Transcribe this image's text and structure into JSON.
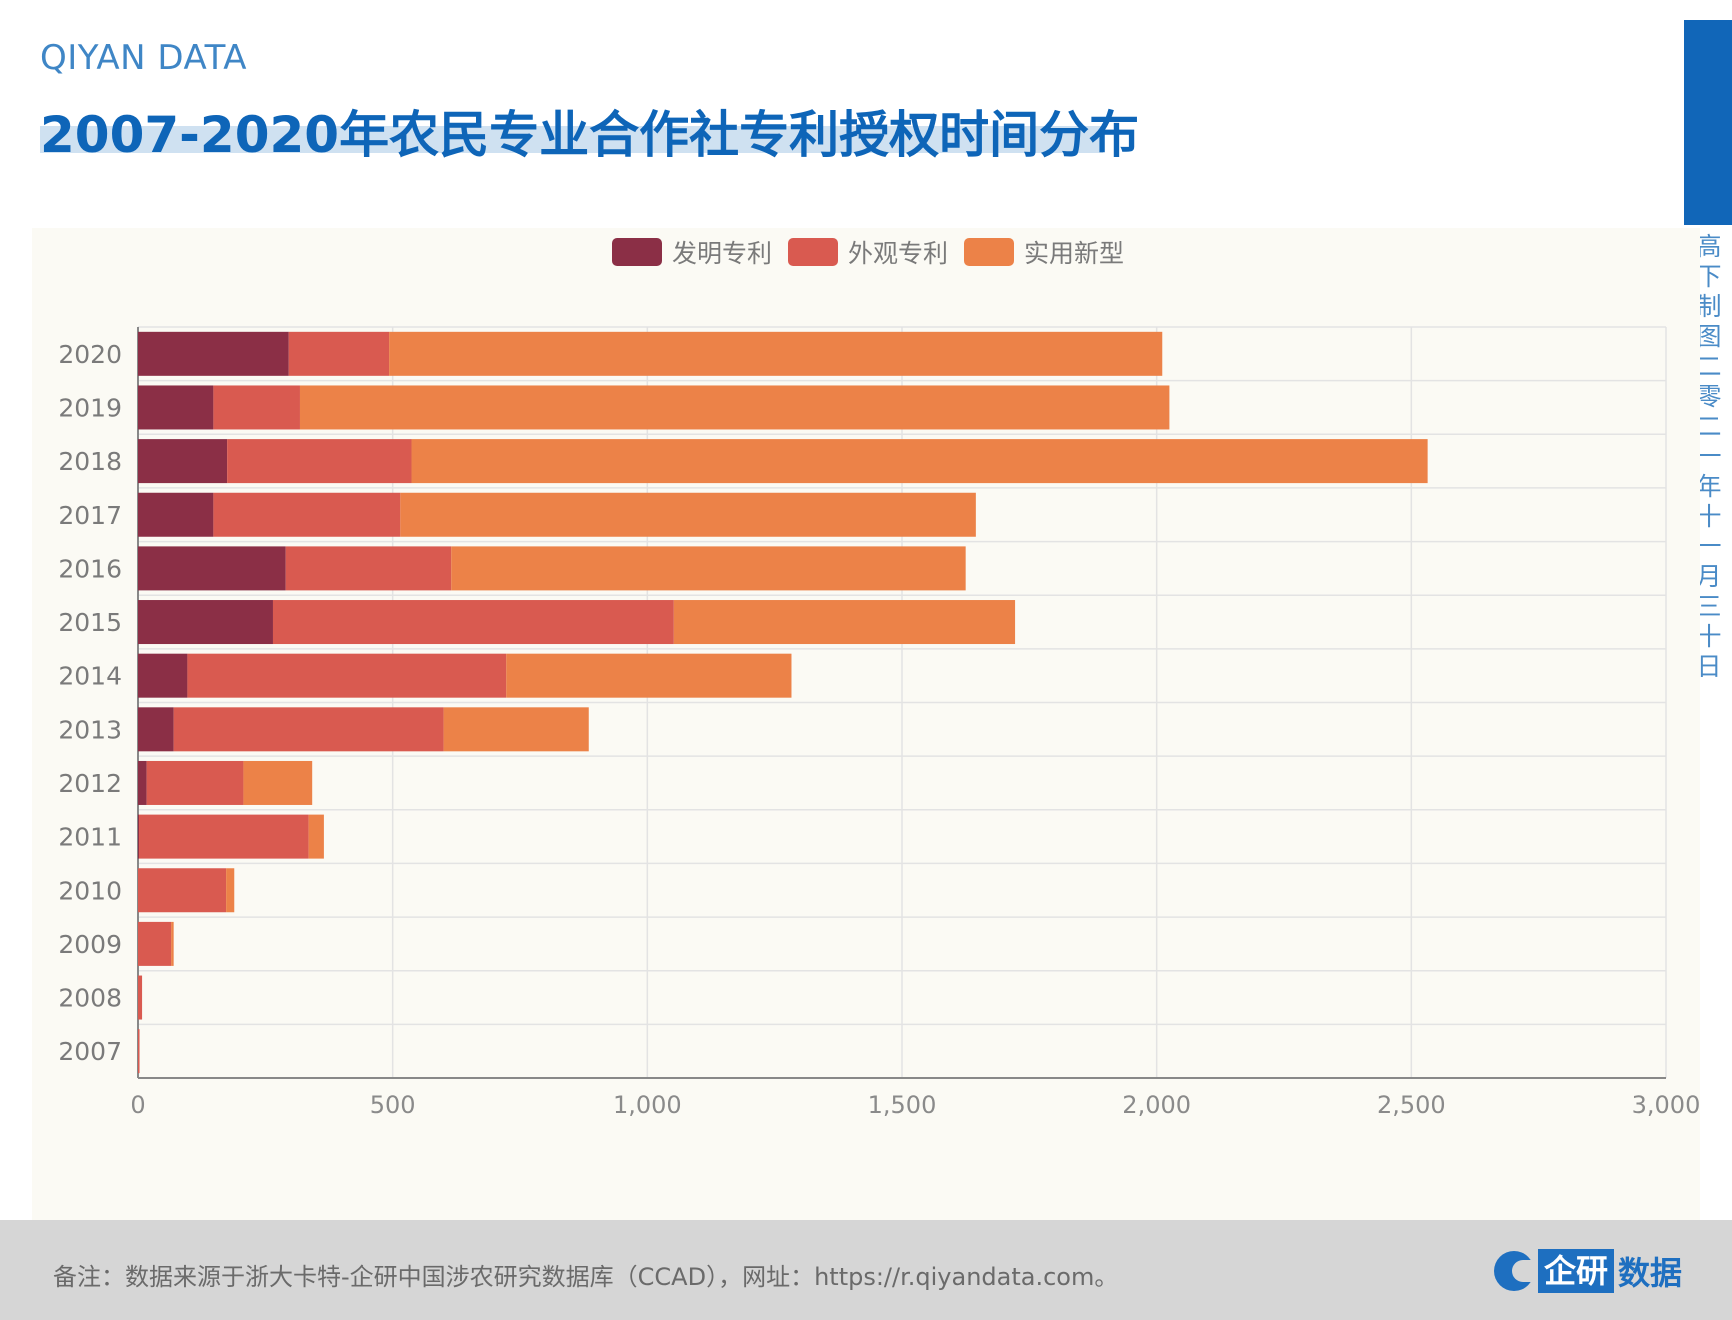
{
  "header": {
    "brand": "QIYAN DATA",
    "title": "2007-2020年农民专业合作社专利授权时间分布"
  },
  "side_text": "高下制图 二零二一年十一月三十日",
  "footer": {
    "note": "备注：数据来源于浙大卡特-企研中国涉农研究数据库（CCAD），网址：https://r.qiyandata.com。",
    "logo_box": "企研",
    "logo_rest": "数据"
  },
  "colors": {
    "accent": "#1166b8",
    "title": "#0e65b8",
    "panel": "#fbfaf4"
  },
  "chart_data": {
    "type": "bar",
    "orientation": "horizontal",
    "stacked": true,
    "categories": [
      "2007",
      "2008",
      "2009",
      "2010",
      "2011",
      "2012",
      "2013",
      "2014",
      "2015",
      "2016",
      "2017",
      "2018",
      "2019",
      "2020"
    ],
    "series": [
      {
        "name": "发明专利",
        "color": "#8b2f46",
        "values": [
          0,
          0,
          0,
          0,
          2,
          17,
          70,
          97,
          265,
          290,
          148,
          175,
          148,
          296
        ]
      },
      {
        "name": "外观专利",
        "color": "#d95a50",
        "values": [
          3,
          8,
          65,
          173,
          333,
          190,
          530,
          626,
          787,
          325,
          367,
          362,
          170,
          197
        ]
      },
      {
        "name": "实用新型",
        "color": "#ec8248",
        "values": [
          0,
          0,
          5,
          16,
          30,
          135,
          285,
          560,
          670,
          1010,
          1130,
          1995,
          1707,
          1518
        ]
      }
    ],
    "xlim": [
      0,
      3000
    ],
    "xticks": [
      0,
      500,
      1000,
      1500,
      2000,
      2500,
      3000
    ],
    "xtick_labels": [
      "0",
      "500",
      "1,000",
      "1,500",
      "2,000",
      "2,500",
      "3,000"
    ],
    "grid": true,
    "legend": "top-center"
  }
}
